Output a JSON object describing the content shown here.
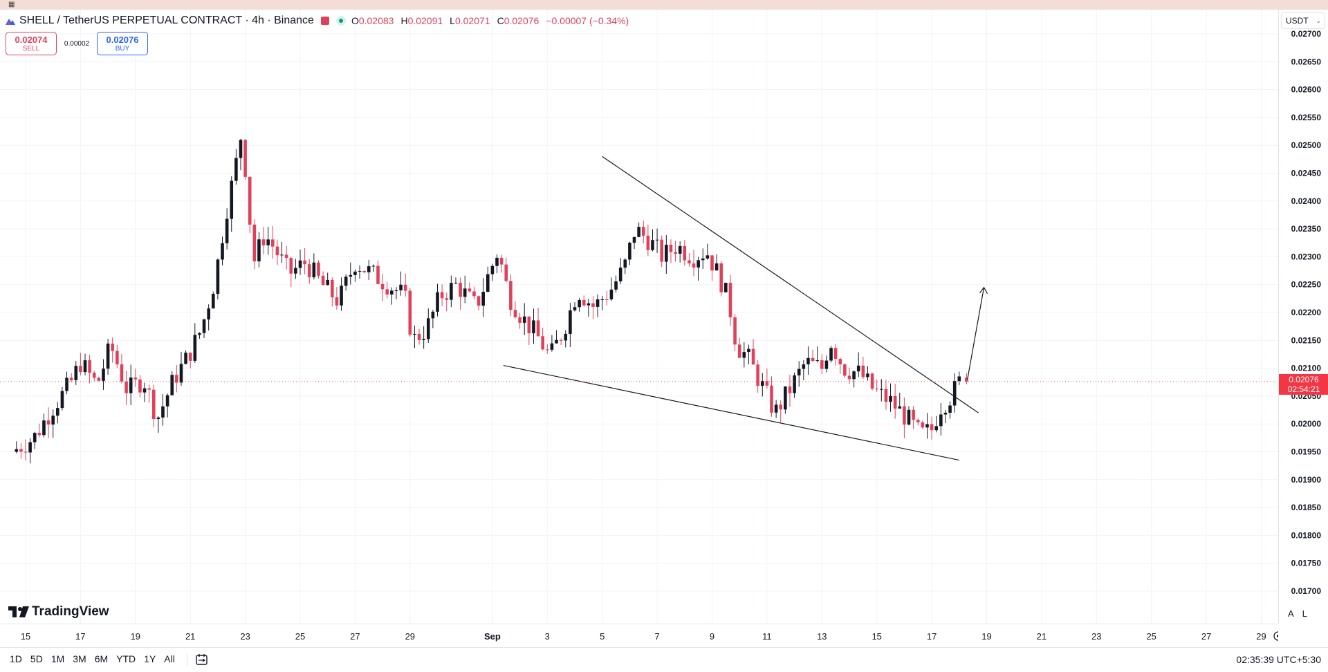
{
  "header": {
    "symbol_title": "SHELL / TetherUS PERPETUAL CONTRACT · 4h · Binance",
    "ohlc": {
      "o_label": "O",
      "o_value": "0.02083",
      "h_label": "H",
      "h_value": "0.02091",
      "l_label": "L",
      "l_value": "0.02071",
      "c_label": "C",
      "c_value": "0.02076",
      "change": "−0.00007 (−0.34%)"
    },
    "status_color": "#089981",
    "down_color": "#e0415a"
  },
  "trade": {
    "sell_price": "0.02074",
    "sell_label": "SELL",
    "spread": "0.00002",
    "buy_price": "0.02076",
    "buy_label": "BUY"
  },
  "currency": "USDT",
  "current_price": {
    "label": "0.02076",
    "countdown": "02:54:21",
    "color": "#f23645"
  },
  "brand": "TradingView",
  "scale_buttons": {
    "auto": "A",
    "log": "L"
  },
  "bottom_bar": {
    "ranges": [
      "1D",
      "5D",
      "1M",
      "3M",
      "6M",
      "YTD",
      "1Y",
      "All"
    ],
    "clock": "02:35:39 UTC+5:30"
  },
  "chart_data": {
    "type": "candlestick",
    "interval": "4h",
    "ylim": [
      0.0168,
      0.0272
    ],
    "grid": true,
    "y_ticks": [
      "0.02700",
      "0.02650",
      "0.02600",
      "0.02550",
      "0.02500",
      "0.02450",
      "0.02400",
      "0.02350",
      "0.02300",
      "0.02250",
      "0.02200",
      "0.02150",
      "0.02100",
      "0.02050",
      "0.02000",
      "0.01950",
      "0.01900",
      "0.01850",
      "0.01800",
      "0.01750",
      "0.01700"
    ],
    "x_ticks": [
      {
        "label": "15",
        "day": 0
      },
      {
        "label": "17",
        "day": 2
      },
      {
        "label": "19",
        "day": 4
      },
      {
        "label": "21",
        "day": 6
      },
      {
        "label": "23",
        "day": 8
      },
      {
        "label": "25",
        "day": 10
      },
      {
        "label": "27",
        "day": 12
      },
      {
        "label": "29",
        "day": 14
      },
      {
        "label": "Sep",
        "day": 17,
        "bold": true
      },
      {
        "label": "3",
        "day": 19
      },
      {
        "label": "5",
        "day": 21
      },
      {
        "label": "7",
        "day": 23
      },
      {
        "label": "9",
        "day": 25
      },
      {
        "label": "11",
        "day": 27
      },
      {
        "label": "13",
        "day": 29
      },
      {
        "label": "15",
        "day": 31
      },
      {
        "label": "17",
        "day": 33
      },
      {
        "label": "19",
        "day": 35
      },
      {
        "label": "21",
        "day": 37
      },
      {
        "label": "23",
        "day": 39
      },
      {
        "label": "25",
        "day": 41
      },
      {
        "label": "27",
        "day": 43
      },
      {
        "label": "29",
        "day": 45
      }
    ],
    "up_color": "#131722",
    "down_color": "#e0415a",
    "keypoints": [
      {
        "day": -0.5,
        "price": 0.0195
      },
      {
        "day": 0.3,
        "price": 0.01975
      },
      {
        "day": 1.0,
        "price": 0.0203
      },
      {
        "day": 1.6,
        "price": 0.0207
      },
      {
        "day": 2.0,
        "price": 0.0211
      },
      {
        "day": 2.6,
        "price": 0.0207
      },
      {
        "day": 3.1,
        "price": 0.0214
      },
      {
        "day": 3.7,
        "price": 0.0206
      },
      {
        "day": 4.3,
        "price": 0.0208
      },
      {
        "day": 4.8,
        "price": 0.0201
      },
      {
        "day": 5.4,
        "price": 0.0208
      },
      {
        "day": 5.9,
        "price": 0.0212
      },
      {
        "day": 6.4,
        "price": 0.0217
      },
      {
        "day": 6.9,
        "price": 0.0226
      },
      {
        "day": 7.3,
        "price": 0.0238
      },
      {
        "day": 7.6,
        "price": 0.0245
      },
      {
        "day": 7.85,
        "price": 0.0252
      },
      {
        "day": 8.0,
        "price": 0.0246
      },
      {
        "day": 8.3,
        "price": 0.0229
      },
      {
        "day": 8.7,
        "price": 0.0234
      },
      {
        "day": 9.0,
        "price": 0.0232
      },
      {
        "day": 9.6,
        "price": 0.0227
      },
      {
        "day": 10.2,
        "price": 0.0229
      },
      {
        "day": 10.8,
        "price": 0.0225
      },
      {
        "day": 11.4,
        "price": 0.0222
      },
      {
        "day": 12.0,
        "price": 0.0229
      },
      {
        "day": 12.6,
        "price": 0.0227
      },
      {
        "day": 13.2,
        "price": 0.0225
      },
      {
        "day": 13.8,
        "price": 0.0223
      },
      {
        "day": 14.1,
        "price": 0.0215
      },
      {
        "day": 14.6,
        "price": 0.0217
      },
      {
        "day": 15.1,
        "price": 0.0223
      },
      {
        "day": 15.7,
        "price": 0.0225
      },
      {
        "day": 16.4,
        "price": 0.0221
      },
      {
        "day": 16.8,
        "price": 0.0226
      },
      {
        "day": 17.2,
        "price": 0.0231
      },
      {
        "day": 17.6,
        "price": 0.0223
      },
      {
        "day": 18.1,
        "price": 0.0219
      },
      {
        "day": 18.6,
        "price": 0.0216
      },
      {
        "day": 19.1,
        "price": 0.0212
      },
      {
        "day": 19.6,
        "price": 0.0217
      },
      {
        "day": 20.1,
        "price": 0.0224
      },
      {
        "day": 20.7,
        "price": 0.0221
      },
      {
        "day": 21.3,
        "price": 0.0224
      },
      {
        "day": 21.8,
        "price": 0.0228
      },
      {
        "day": 22.2,
        "price": 0.0235
      },
      {
        "day": 22.7,
        "price": 0.0233
      },
      {
        "day": 23.2,
        "price": 0.023
      },
      {
        "day": 23.7,
        "price": 0.0232
      },
      {
        "day": 24.3,
        "price": 0.023
      },
      {
        "day": 24.8,
        "price": 0.0231
      },
      {
        "day": 25.3,
        "price": 0.0226
      },
      {
        "day": 25.6,
        "price": 0.0222
      },
      {
        "day": 25.9,
        "price": 0.0214
      },
      {
        "day": 26.3,
        "price": 0.0212
      },
      {
        "day": 26.8,
        "price": 0.0207
      },
      {
        "day": 27.3,
        "price": 0.0202
      },
      {
        "day": 27.8,
        "price": 0.0206
      },
      {
        "day": 28.4,
        "price": 0.0211
      },
      {
        "day": 29.0,
        "price": 0.021
      },
      {
        "day": 29.3,
        "price": 0.0215
      },
      {
        "day": 29.8,
        "price": 0.021
      },
      {
        "day": 30.4,
        "price": 0.0209
      },
      {
        "day": 30.9,
        "price": 0.0206
      },
      {
        "day": 31.5,
        "price": 0.0204
      },
      {
        "day": 32.1,
        "price": 0.0201
      },
      {
        "day": 32.6,
        "price": 0.0198
      },
      {
        "day": 33.0,
        "price": 0.0199
      },
      {
        "day": 33.3,
        "price": 0.0203
      },
      {
        "day": 33.7,
        "price": 0.0205
      },
      {
        "day": 34.1,
        "price": 0.02083
      }
    ],
    "last_candle": {
      "open": 0.02083,
      "high": 0.02091,
      "low": 0.02071,
      "close": 0.02076
    },
    "drawings": {
      "upper_trendline": [
        {
          "day": 21.0,
          "price": 0.0248
        },
        {
          "day": 34.7,
          "price": 0.0202
        }
      ],
      "lower_trendline": [
        {
          "day": 17.4,
          "price": 0.02105
        },
        {
          "day": 34.0,
          "price": 0.01935
        }
      ],
      "arrow": [
        {
          "day": 34.3,
          "price": 0.0208
        },
        {
          "day": 34.9,
          "price": 0.02245
        }
      ]
    }
  }
}
